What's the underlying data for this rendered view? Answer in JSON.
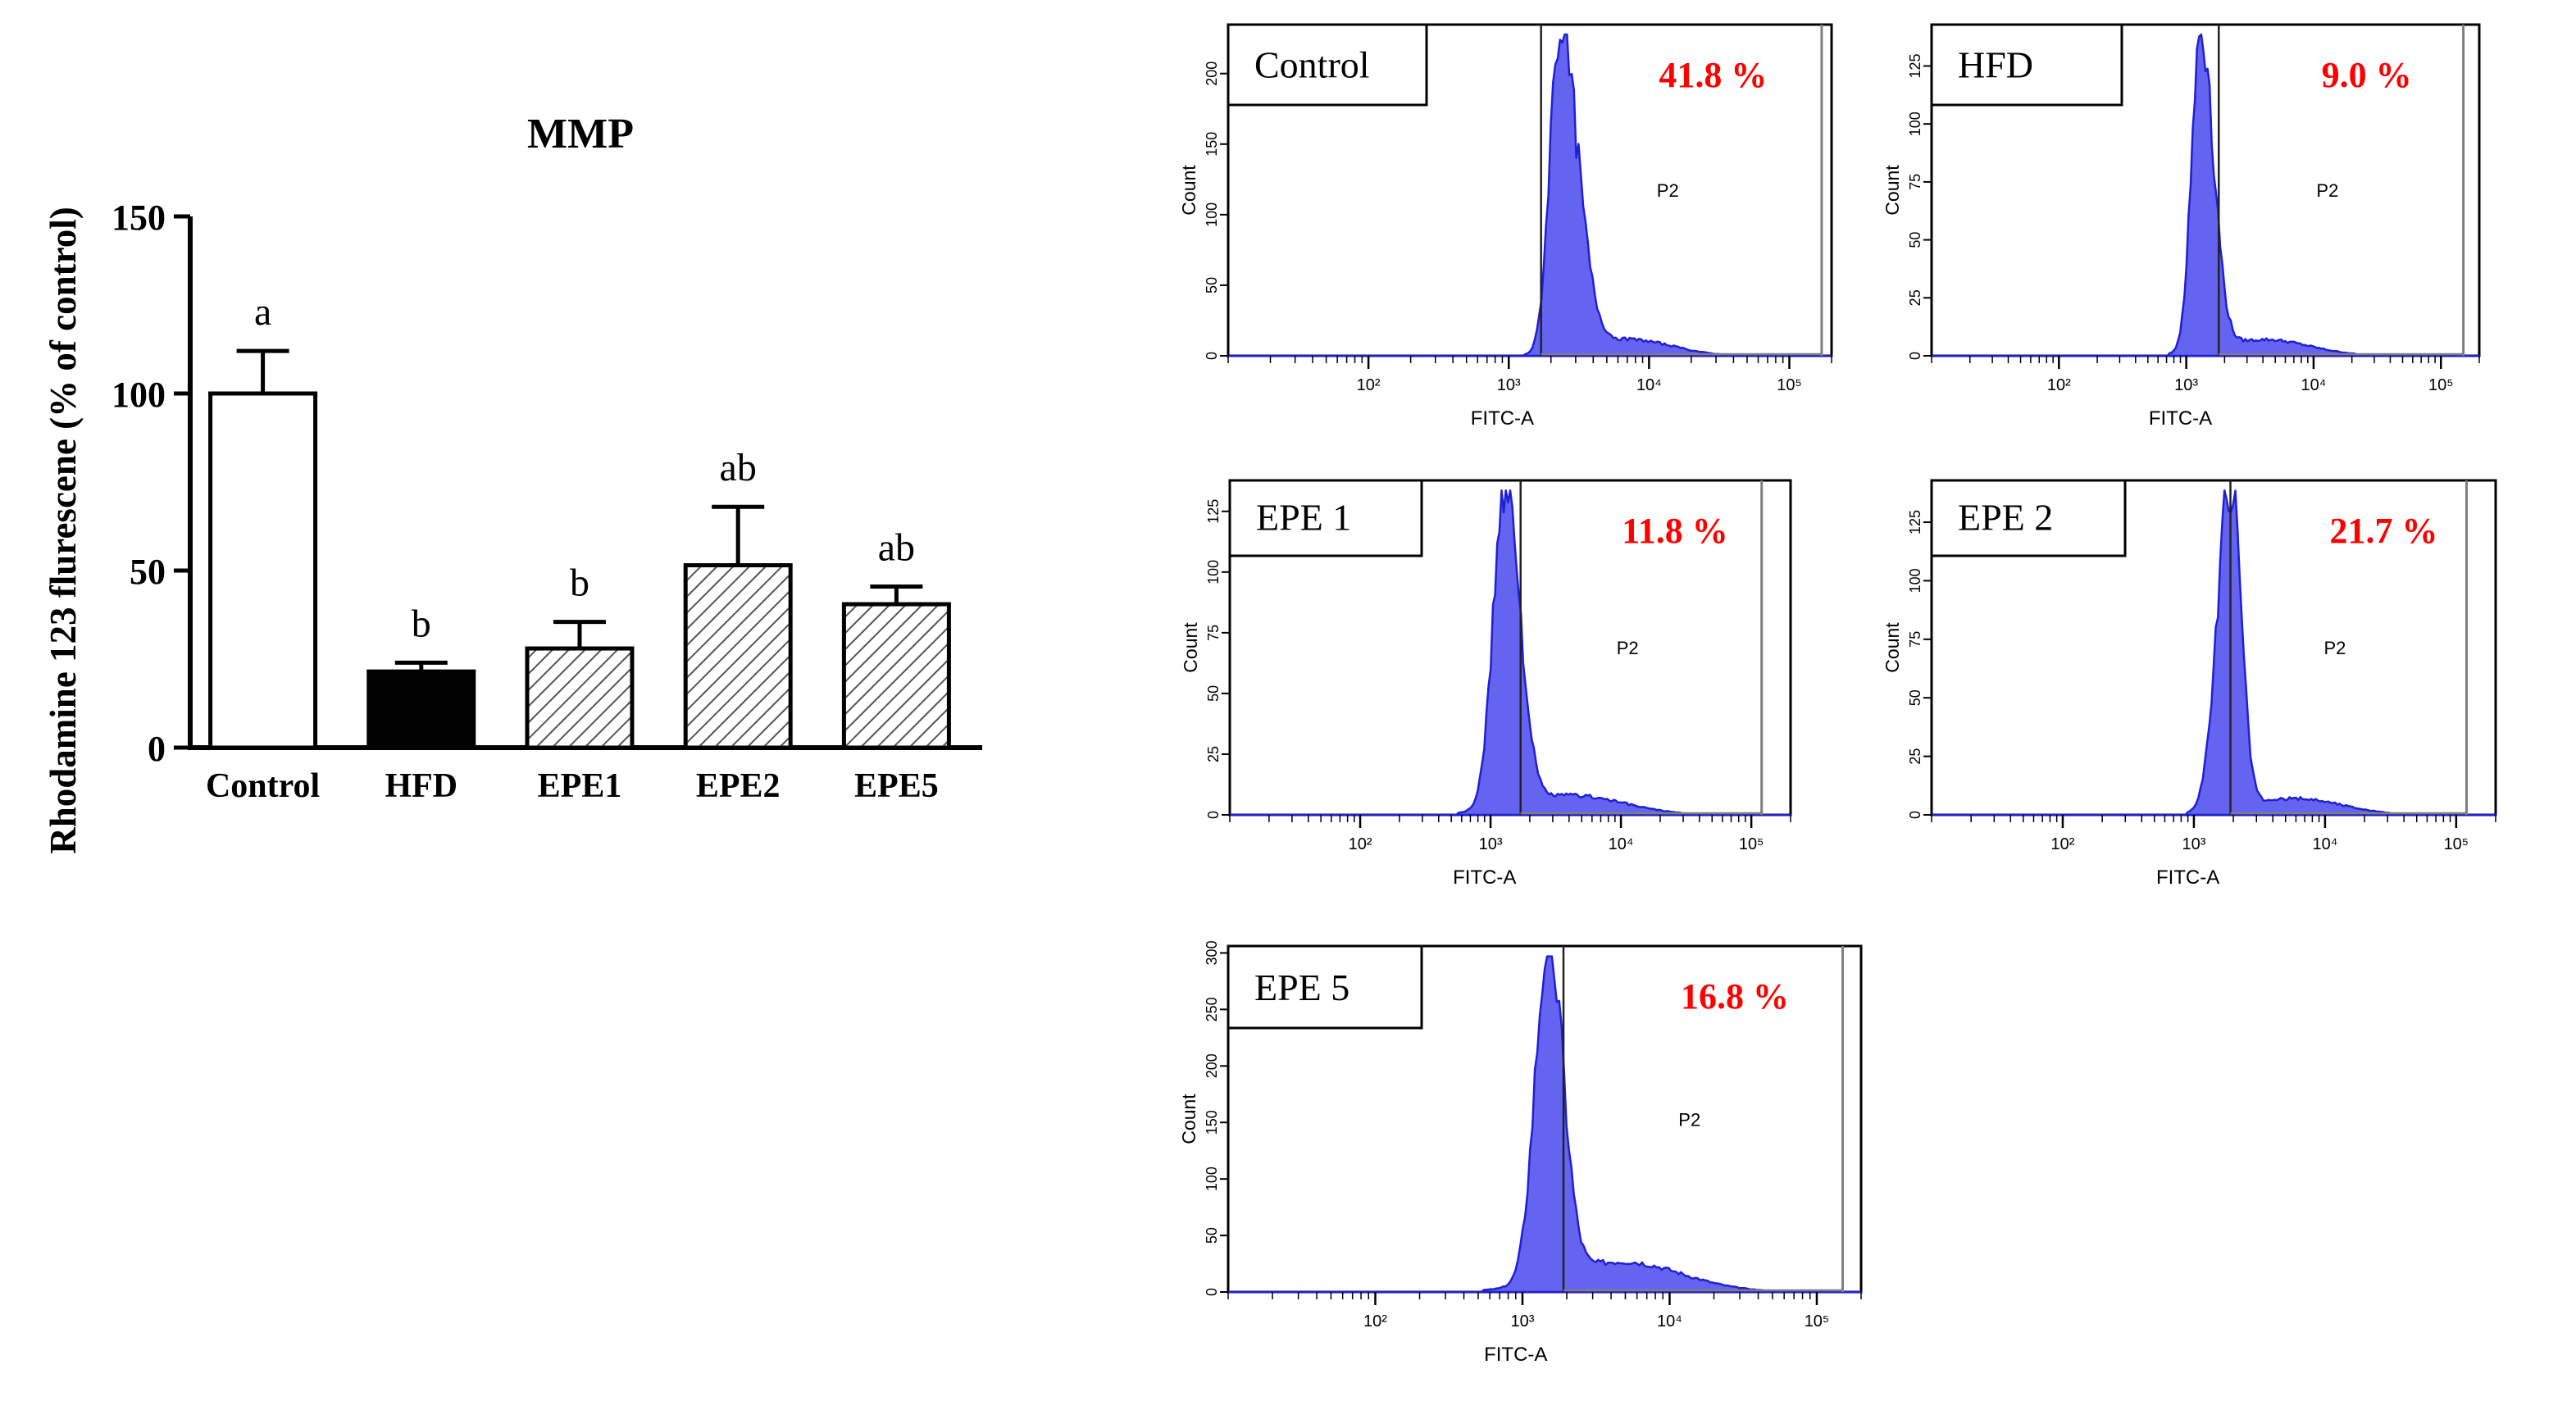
{
  "colors": {
    "axis": "#000000",
    "histogram_fill": "#6464f0",
    "histogram_edge": "#1f1fd6",
    "percent_text": "#ff0000",
    "frame": "#000000",
    "gate": "#7f7f7f"
  },
  "chart_data": [
    {
      "type": "bar",
      "title": "MMP",
      "xlabel": "",
      "ylabel": "Rhodamine 123 flurescene (% of control)",
      "ylim": [
        0,
        150
      ],
      "yticks": [
        "0",
        "50",
        "100",
        "150"
      ],
      "grid": false,
      "categories": [
        "Control",
        "HFD",
        "EPE1",
        "EPE2",
        "EPE5"
      ],
      "values": [
        100,
        21.5,
        28,
        51.5,
        40.5
      ],
      "errors": [
        12,
        2.5,
        7.5,
        16.5,
        5
      ],
      "significance": [
        "a",
        "b",
        "b",
        "ab",
        "ab"
      ],
      "fills": [
        "white",
        "black",
        "hatched",
        "hatched",
        "hatched"
      ]
    },
    {
      "type": "area",
      "panel": "Control",
      "percent": "41.8 %",
      "gate_label": "P2",
      "xlabel": "FITC-A",
      "ylabel": "Count",
      "xscale": "log",
      "xlim": [
        10,
        200000
      ],
      "xticks": [
        "10²",
        "10³",
        "10⁴",
        "10⁵"
      ],
      "ylim": [
        0,
        230
      ],
      "yticks": [
        "0",
        "50",
        "100",
        "150",
        "200"
      ],
      "gate": [
        1700,
        170000
      ],
      "peak": 2300,
      "peak_count": 230,
      "left_sd": 0.07,
      "right_sd": 0.13,
      "tail_weight": 0.05,
      "tail_sd": 0.3
    },
    {
      "type": "area",
      "panel": "HFD",
      "percent": "9.0 %",
      "gate_label": "P2",
      "xlabel": "FITC-A",
      "ylabel": "Count",
      "xscale": "log",
      "xlim": [
        10,
        200000
      ],
      "xticks": [
        "10²",
        "10³",
        "10⁴",
        "10⁵"
      ],
      "ylim": [
        0,
        140
      ],
      "yticks": [
        "0",
        "25",
        "50",
        "75",
        "100",
        "125"
      ],
      "gate": [
        1800,
        150000
      ],
      "peak": 1300,
      "peak_count": 140,
      "left_sd": 0.07,
      "right_sd": 0.1,
      "tail_weight": 0.05,
      "tail_sd": 0.35
    },
    {
      "type": "area",
      "panel": "EPE 1",
      "percent": "11.8 %",
      "gate_label": "P2",
      "xlabel": "FITC-A",
      "ylabel": "Count",
      "xscale": "log",
      "xlim": [
        10,
        200000
      ],
      "xticks": [
        "10²",
        "10³",
        "10⁴",
        "10⁵"
      ],
      "ylim": [
        0,
        135
      ],
      "yticks": [
        "0",
        "25",
        "50",
        "75",
        "100",
        "125"
      ],
      "gate": [
        1700,
        120000
      ],
      "peak": 1300,
      "peak_count": 135,
      "left_sd": 0.09,
      "right_sd": 0.11,
      "tail_weight": 0.06,
      "tail_sd": 0.4
    },
    {
      "type": "area",
      "panel": "EPE 2",
      "percent": "21.7 %",
      "gate_label": "P2",
      "xlabel": "FITC-A",
      "ylabel": "Count",
      "xscale": "log",
      "xlim": [
        10,
        200000
      ],
      "xticks": [
        "10²",
        "10³",
        "10⁴",
        "10⁵"
      ],
      "ylim": [
        0,
        140
      ],
      "yticks": [
        "0",
        "25",
        "50",
        "75",
        "100",
        "125"
      ],
      "gate": [
        1900,
        120000
      ],
      "peak": 1900,
      "peak_count": 140,
      "left_sd": 0.1,
      "right_sd": 0.08,
      "tail_weight": 0.05,
      "tail_sd": 0.35
    },
    {
      "type": "area",
      "panel": "EPE 5",
      "percent": "16.8 %",
      "gate_label": "P2",
      "xlabel": "FITC-A",
      "ylabel": "Count",
      "xscale": "log",
      "xlim": [
        10,
        200000
      ],
      "xticks": [
        "10²",
        "10³",
        "10⁴",
        "10⁵"
      ],
      "ylim": [
        0,
        300
      ],
      "yticks": [
        "0",
        "50",
        "100",
        "150",
        "200",
        "250",
        "300"
      ],
      "gate": [
        1900,
        150000
      ],
      "peak": 1500,
      "peak_count": 300,
      "left_sd": 0.09,
      "right_sd": 0.1,
      "tail_weight": 0.09,
      "tail_sd": 0.4
    }
  ]
}
